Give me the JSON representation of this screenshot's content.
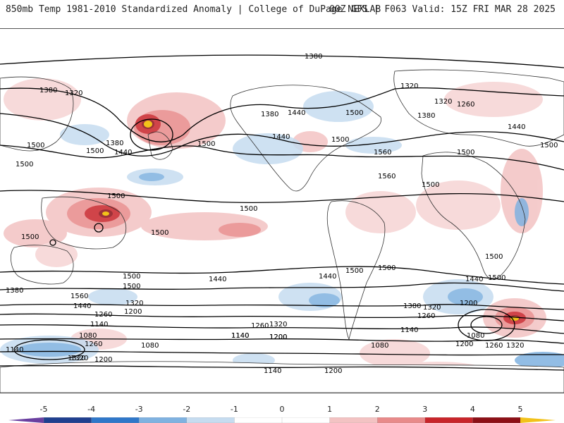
{
  "header": {
    "left_title": "850mb Temp 1981-2010 Standardized Anomaly | College of DuPage NEXLAB",
    "right_title": "00Z GFS | F063 Valid: 15Z FRI MAR 28 2025"
  },
  "map": {
    "contour_labels": [
      "1380",
      "1380",
      "1320",
      "1320",
      "1260",
      "1380",
      "1320",
      "1440",
      "1380",
      "1440",
      "1500",
      "1500",
      "1500",
      "1380",
      "1440",
      "1500",
      "1500",
      "1560",
      "1560",
      "1500",
      "1440",
      "1500",
      "1500",
      "1500",
      "1500",
      "1500",
      "1500",
      "1500",
      "1500",
      "1500",
      "1440",
      "1500",
      "1440",
      "1560",
      "1440",
      "1380",
      "1320",
      "1260",
      "1200",
      "1140",
      "1080",
      "1260",
      "1320",
      "1320",
      "1260",
      "1200",
      "1140",
      "1080",
      "1140",
      "1200",
      "1260",
      "1320",
      "1380",
      "1440",
      "1500",
      "1500",
      "1500",
      "1200",
      "1080",
      "1260",
      "1320",
      "1140",
      "1200",
      "1140",
      "1200",
      "1140",
      "1200",
      "1320",
      "1080"
    ]
  },
  "colorbar": {
    "ticks": [
      "-5",
      "-4",
      "-3",
      "-2",
      "-1",
      "0",
      "1",
      "2",
      "3",
      "4",
      "5"
    ],
    "colors": [
      "#6a3fa0",
      "#1f3f8f",
      "#2f77c9",
      "#7fb2e0",
      "#c6dcf0",
      "#ffffff",
      "#ffffff",
      "#f3c3c3",
      "#e88a8a",
      "#c8242a",
      "#8c0f16",
      "#f2c21a"
    ]
  }
}
